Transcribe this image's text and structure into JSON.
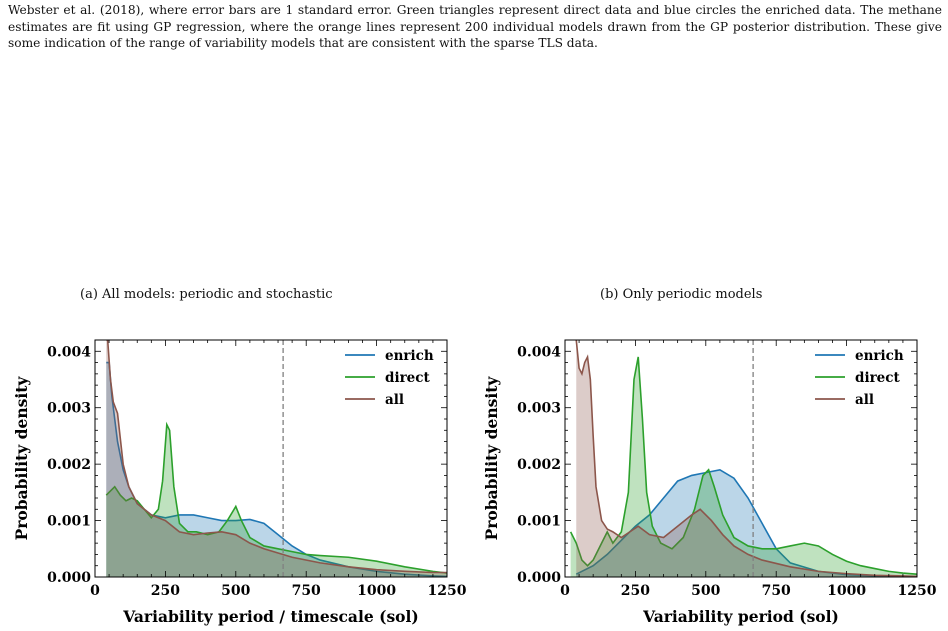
{
  "caption": {
    "text": "Webster et al. (2018), where error bars are 1 standard error. Green triangles represent direct data and blue circles the enriched data. The methane estimates are fit using GP regression, where the orange lines represent 200 individual models drawn from the GP posterior distribution. These give some indication of the range of variability models that are consistent with the sparse TLS data."
  },
  "colors": {
    "enrich": "#1f77b4",
    "direct": "#2ca02c",
    "all": "#8c564b",
    "vline": "#808080"
  },
  "chart_data": [
    {
      "type": "area",
      "title": "(a) All models: periodic and stochastic",
      "xlabel": "Variability period / timescale (sol)",
      "ylabel": "Probability density",
      "xlim": [
        0,
        1250
      ],
      "ylim": [
        0,
        0.0042
      ],
      "xticks": [
        0,
        250,
        500,
        750,
        1000,
        1250
      ],
      "xtick_labels": [
        "0",
        "250",
        "500",
        "750",
        "1000",
        "1250"
      ],
      "yticks": [
        0,
        0.001,
        0.002,
        0.003,
        0.004
      ],
      "ytick_labels": [
        "0.000",
        "0.001",
        "0.002",
        "0.003",
        "0.004"
      ],
      "vline_x": 668,
      "legend_position": "top-right",
      "series": [
        {
          "name": "enrich",
          "key": "enrich",
          "x": [
            40,
            50,
            60,
            80,
            100,
            120,
            150,
            200,
            250,
            300,
            350,
            400,
            450,
            500,
            550,
            600,
            650,
            700,
            750,
            800,
            900,
            1000,
            1100,
            1200,
            1250
          ],
          "y": [
            0.0038,
            0.0038,
            0.0032,
            0.0024,
            0.0019,
            0.0016,
            0.0013,
            0.0011,
            0.00105,
            0.0011,
            0.0011,
            0.00105,
            0.001,
            0.001,
            0.00102,
            0.00095,
            0.00075,
            0.00055,
            0.0004,
            0.0003,
            0.00018,
            0.0001,
            5e-05,
            2e-05,
            1e-05
          ]
        },
        {
          "name": "direct",
          "key": "direct",
          "x": [
            40,
            50,
            70,
            90,
            110,
            130,
            150,
            175,
            200,
            225,
            240,
            255,
            265,
            280,
            300,
            330,
            360,
            400,
            440,
            470,
            500,
            520,
            550,
            600,
            650,
            700,
            750,
            800,
            900,
            1000,
            1100,
            1200,
            1250
          ],
          "y": [
            0.00145,
            0.0015,
            0.0016,
            0.00145,
            0.00135,
            0.0014,
            0.00135,
            0.0012,
            0.00105,
            0.0012,
            0.0017,
            0.0027,
            0.0026,
            0.0016,
            0.00095,
            0.0008,
            0.0008,
            0.00075,
            0.0008,
            0.001,
            0.00125,
            0.001,
            0.0007,
            0.00055,
            0.0005,
            0.00045,
            0.0004,
            0.00038,
            0.00035,
            0.00028,
            0.00018,
            0.0001,
            7e-05
          ]
        },
        {
          "name": "all",
          "key": "all",
          "x": [
            40,
            45,
            55,
            65,
            80,
            100,
            120,
            150,
            200,
            250,
            300,
            350,
            400,
            450,
            500,
            550,
            600,
            700,
            800,
            900,
            1000,
            1100,
            1200,
            1250
          ],
          "y": [
            0.0042,
            0.0042,
            0.0035,
            0.0031,
            0.0029,
            0.002,
            0.0016,
            0.0013,
            0.0011,
            0.001,
            0.0008,
            0.00075,
            0.00078,
            0.0008,
            0.00075,
            0.0006,
            0.0005,
            0.00035,
            0.00025,
            0.00018,
            0.00013,
            0.0001,
            8e-05,
            8e-05
          ]
        }
      ]
    },
    {
      "type": "area",
      "title": "(b) Only periodic models",
      "xlabel": "Variability period (sol)",
      "ylabel": "Probability density",
      "xlim": [
        0,
        1250
      ],
      "ylim": [
        0,
        0.0042
      ],
      "xticks": [
        0,
        250,
        500,
        750,
        1000,
        1250
      ],
      "xtick_labels": [
        "0",
        "250",
        "500",
        "750",
        "1000",
        "1250"
      ],
      "yticks": [
        0,
        0.001,
        0.002,
        0.003,
        0.004
      ],
      "ytick_labels": [
        "0.000",
        "0.001",
        "0.002",
        "0.003",
        "0.004"
      ],
      "vline_x": 668,
      "legend_position": "top-right",
      "series": [
        {
          "name": "enrich",
          "key": "enrich",
          "x": [
            40,
            100,
            150,
            200,
            250,
            300,
            350,
            400,
            450,
            500,
            550,
            600,
            650,
            700,
            750,
            800,
            900,
            1000,
            1100,
            1200,
            1250
          ],
          "y": [
            5e-05,
            0.0002,
            0.0004,
            0.00065,
            0.0009,
            0.0011,
            0.0014,
            0.0017,
            0.0018,
            0.00185,
            0.0019,
            0.00175,
            0.0014,
            0.00095,
            0.0005,
            0.00025,
            0.0001,
            4e-05,
            2e-05,
            1e-05,
            1e-05
          ]
        },
        {
          "name": "direct",
          "key": "direct",
          "x": [
            20,
            40,
            60,
            80,
            100,
            130,
            150,
            170,
            200,
            225,
            245,
            260,
            275,
            290,
            310,
            340,
            380,
            420,
            460,
            490,
            510,
            530,
            560,
            600,
            650,
            700,
            750,
            800,
            850,
            900,
            950,
            1000,
            1050,
            1100,
            1150,
            1200,
            1250
          ],
          "y": [
            0.0008,
            0.0006,
            0.0003,
            0.0002,
            0.0003,
            0.0006,
            0.0008,
            0.0006,
            0.0008,
            0.0015,
            0.0035,
            0.0039,
            0.0028,
            0.0015,
            0.0009,
            0.0006,
            0.0005,
            0.0007,
            0.0012,
            0.0018,
            0.0019,
            0.0016,
            0.0011,
            0.0007,
            0.00055,
            0.0005,
            0.0005,
            0.00055,
            0.0006,
            0.00055,
            0.0004,
            0.00028,
            0.0002,
            0.00015,
            0.0001,
            7e-05,
            5e-05
          ]
        },
        {
          "name": "all",
          "key": "all",
          "x": [
            40,
            50,
            60,
            70,
            80,
            90,
            100,
            110,
            130,
            150,
            170,
            200,
            230,
            260,
            300,
            350,
            400,
            450,
            480,
            520,
            560,
            600,
            650,
            700,
            800,
            900,
            1000,
            1100,
            1200,
            1250
          ],
          "y": [
            0.0042,
            0.0037,
            0.0036,
            0.0038,
            0.0039,
            0.0035,
            0.0025,
            0.0016,
            0.001,
            0.00085,
            0.0008,
            0.0007,
            0.0008,
            0.0009,
            0.00075,
            0.0007,
            0.0009,
            0.0011,
            0.0012,
            0.001,
            0.00075,
            0.00055,
            0.0004,
            0.0003,
            0.00018,
            0.0001,
            6e-05,
            3e-05,
            2e-05,
            1e-05
          ]
        }
      ]
    }
  ]
}
